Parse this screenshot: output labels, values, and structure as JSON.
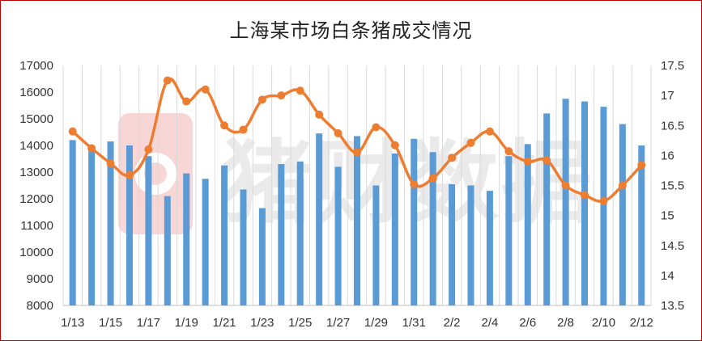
{
  "chart_data": {
    "type": "bar+line",
    "title": "上海某市场白条猪成交情况",
    "categories": [
      "1/13",
      "1/14",
      "1/15",
      "1/16",
      "1/17",
      "1/18",
      "1/19",
      "1/20",
      "1/21",
      "1/22",
      "1/23",
      "1/24",
      "1/25",
      "1/26",
      "1/27",
      "1/28",
      "1/29",
      "1/30",
      "1/31",
      "2/1",
      "2/2",
      "2/3",
      "2/4",
      "2/5",
      "2/6",
      "2/7",
      "2/8",
      "2/9",
      "2/10",
      "2/11",
      "2/12"
    ],
    "x_tick_labels": [
      "1/13",
      "1/15",
      "1/17",
      "1/19",
      "1/21",
      "1/23",
      "1/25",
      "1/27",
      "1/29",
      "1/31",
      "2/2",
      "2/4",
      "2/6",
      "2/8",
      "2/10",
      "2/12"
    ],
    "series": [
      {
        "type": "bar",
        "axis": "left",
        "color": "#5b9bd5",
        "values": [
          14200,
          13900,
          14150,
          14000,
          13600,
          12100,
          12950,
          12750,
          13250,
          12350,
          11650,
          13300,
          13400,
          14450,
          13200,
          14350,
          12500,
          13700,
          14250,
          13750,
          12550,
          12500,
          12300,
          13600,
          14050,
          15200,
          15750,
          15650,
          15450,
          14800,
          14000
        ]
      },
      {
        "type": "line",
        "axis": "right",
        "color": "#ed7d31",
        "values": [
          16.4,
          16.12,
          15.87,
          15.67,
          16.1,
          17.25,
          16.9,
          17.1,
          16.5,
          16.43,
          16.93,
          17.0,
          17.08,
          16.68,
          16.37,
          16.05,
          16.47,
          16.17,
          15.52,
          15.62,
          15.96,
          16.21,
          16.4,
          16.07,
          15.9,
          15.92,
          15.5,
          15.34,
          15.24,
          15.5,
          15.84
        ]
      }
    ],
    "ylim_left": [
      8000,
      17000
    ],
    "ylim_right": [
      13.5,
      17.5
    ],
    "y_left_ticks": [
      8000,
      9000,
      10000,
      11000,
      12000,
      13000,
      14000,
      15000,
      16000,
      17000
    ],
    "y_right_ticks": [
      13.5,
      14,
      14.5,
      15,
      15.5,
      16,
      16.5,
      17,
      17.5
    ],
    "grid": "vertical",
    "legend": "none"
  },
  "watermark": {
    "text": "猪财数据",
    "color": "#d9d9d9"
  },
  "colors": {
    "frame_border": "#c00000",
    "grid": "#d9d9d9",
    "axis_text": "#333333"
  }
}
